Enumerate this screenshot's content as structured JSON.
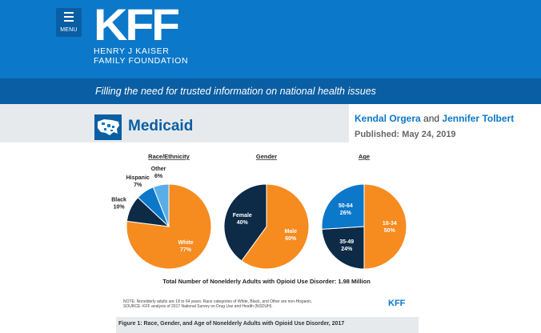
{
  "header": {
    "menu_label": "MENU",
    "logo_mark": "KFF",
    "logo_line1": "HENRY J KAISER",
    "logo_line2": "FAMILY FOUNDATION",
    "tagline": "Filling the need for trusted information on national health issues",
    "brand_color": "#0c78c9",
    "dark_color": "#0a5ea3"
  },
  "section": {
    "title": "Medicaid",
    "icon": "us-map-icon"
  },
  "byline": {
    "author1": "Kendal Orgera",
    "conjunction": "and",
    "author2": "Jennifer Tolbert",
    "published": "Published: May 24, 2019"
  },
  "figure": {
    "caption": "Figure 1: Race, Gender, and Age of Nonelderly Adults with Opioid Use Disorder, 2017",
    "total": "Total Number of Nonelderly Adults with Opioid Use Disorder: 1.98 Million",
    "note_line1": "NOTE: Nonelderly adults are 18 to 64 years. Race categories of White, Black, and Other are non-Hispanic.",
    "note_line2": "SOURCE: KFF analysis of 2017 National Survey on Drug Use and Health (NSDUH).",
    "watermark": "KFF"
  },
  "chart_data": [
    {
      "type": "pie",
      "title": "Race/Ethnicity",
      "slices": [
        {
          "label": "White",
          "value": 77,
          "value_label": "77%",
          "color": "#f68b1f"
        },
        {
          "label": "Black",
          "value": 10,
          "value_label": "10%",
          "color": "#0d2a47"
        },
        {
          "label": "Hispanic",
          "value": 7,
          "value_label": "7%",
          "color": "#0c78c9"
        },
        {
          "label": "Other",
          "value": 6,
          "value_label": "6%",
          "color": "#5aaee8"
        }
      ]
    },
    {
      "type": "pie",
      "title": "Gender",
      "slices": [
        {
          "label": "Male",
          "value": 60,
          "value_label": "60%",
          "color": "#f68b1f"
        },
        {
          "label": "Female",
          "value": 40,
          "value_label": "40%",
          "color": "#0d2a47"
        }
      ]
    },
    {
      "type": "pie",
      "title": "Age",
      "slices": [
        {
          "label": "18-34",
          "value": 50,
          "value_label": "50%",
          "color": "#f68b1f"
        },
        {
          "label": "35-49",
          "value": 24,
          "value_label": "24%",
          "color": "#0d2a47"
        },
        {
          "label": "50-64",
          "value": 26,
          "value_label": "26%",
          "color": "#0c78c9"
        }
      ]
    }
  ]
}
